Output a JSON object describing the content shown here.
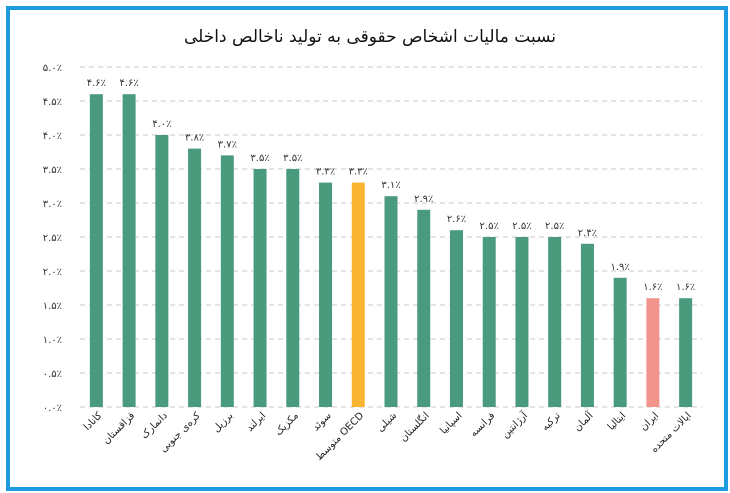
{
  "chart_data": {
    "type": "bar",
    "title": "نسبت مالیات اشخاص حقوقی به تولید ناخالص داخلی",
    "ylim": [
      0,
      5.0
    ],
    "y_ticks": [
      "۰.۰٪",
      "۰.۵٪",
      "۱.۰٪",
      "۱.۵٪",
      "۲.۰٪",
      "۲.۵٪",
      "۳.۰٪",
      "۳.۵٪",
      "۴.۰٪",
      "۴.۵٪",
      "۵.۰٪"
    ],
    "grid": "horizontal dashed",
    "categories": [
      "کانادا",
      "قزاقستان",
      "دانمارک",
      "کره‌ی جنوبی",
      "برزیل",
      "ایرلند",
      "مکزیک",
      "سوئد",
      "متوسط OECD",
      "شیلی",
      "انگلستان",
      "اسپانیا",
      "فرانسه",
      "آرژانتین",
      "ترکیه",
      "آلمان",
      "ایتالیا",
      "ایران",
      "ایالات متحده"
    ],
    "values": [
      4.6,
      4.6,
      4.0,
      3.8,
      3.7,
      3.5,
      3.5,
      3.3,
      3.3,
      3.1,
      2.9,
      2.6,
      2.5,
      2.5,
      2.5,
      2.4,
      1.9,
      1.6,
      1.6
    ],
    "data_labels": [
      "۴.۶٪",
      "۴.۶٪",
      "۴.۰٪",
      "۳.۸٪",
      "۳.۷٪",
      "۳.۵٪",
      "۳.۵٪",
      "۳.۳٪",
      "۳.۳٪",
      "۳.۱٪",
      "۲.۹٪",
      "۲.۶٪",
      "۲.۵٪",
      "۲.۵٪",
      "۲.۵٪",
      "۲.۴٪",
      "۱.۹٪",
      "۱.۶٪",
      "۱.۶٪"
    ],
    "bar_colors": [
      "#4a9a7e",
      "#4a9a7e",
      "#4a9a7e",
      "#4a9a7e",
      "#4a9a7e",
      "#4a9a7e",
      "#4a9a7e",
      "#4a9a7e",
      "#fbb531",
      "#4a9a7e",
      "#4a9a7e",
      "#4a9a7e",
      "#4a9a7e",
      "#4a9a7e",
      "#4a9a7e",
      "#4a9a7e",
      "#4a9a7e",
      "#f0948c",
      "#4a9a7e"
    ],
    "colors": {
      "default": "#4a9a7e",
      "oecd_average": "#fbb531",
      "iran": "#f0948c",
      "border": "#1e9be0"
    }
  }
}
